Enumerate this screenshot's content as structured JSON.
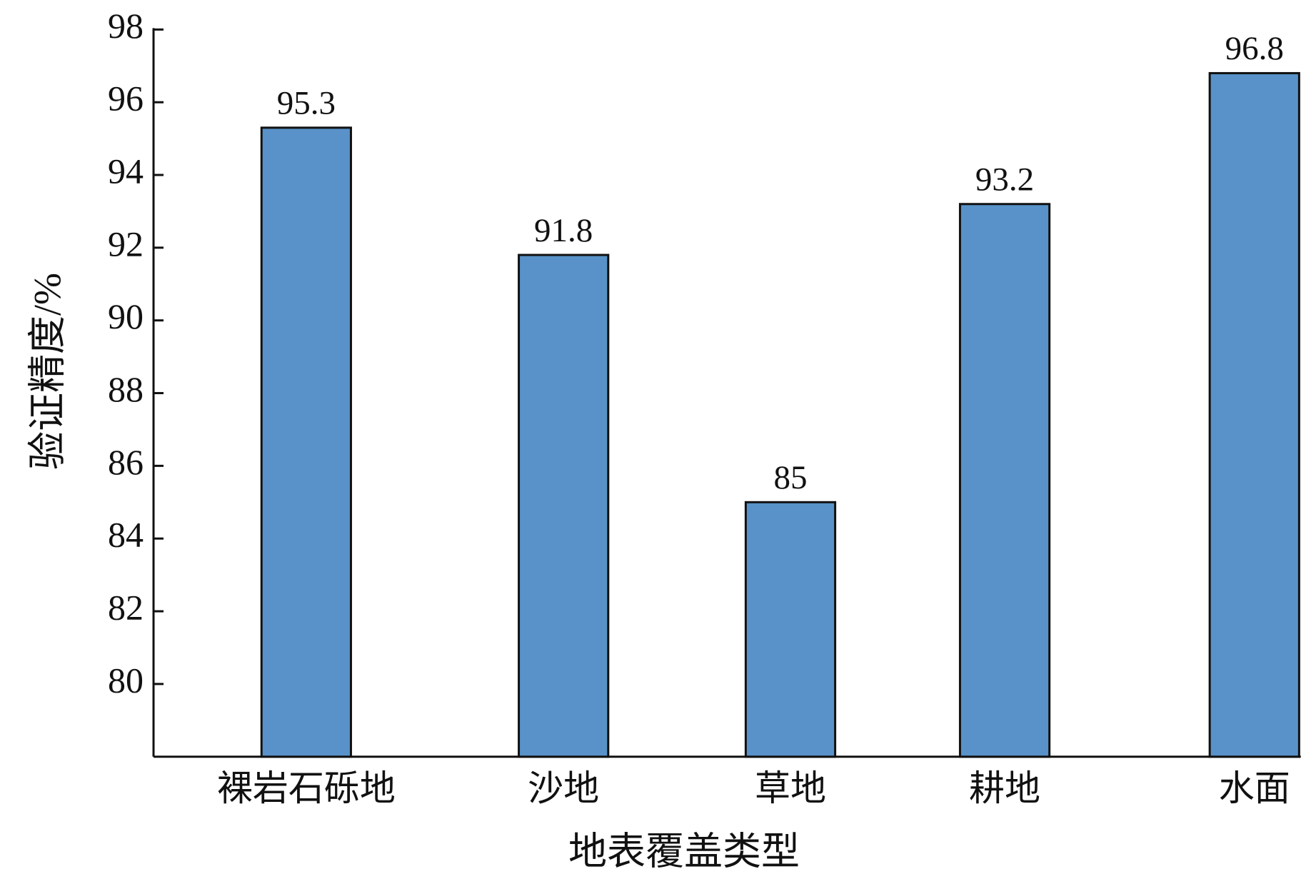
{
  "chart_data": {
    "type": "bar",
    "x_label": "地表覆盖类型",
    "y_label": "验证精度/%",
    "categories": [
      "裸岩石砾地",
      "沙地",
      "草地",
      "耕地",
      "水面"
    ],
    "values": [
      95.3,
      91.8,
      85,
      93.2,
      96.8
    ],
    "color": "#5892c8",
    "ylim": [
      78,
      98
    ],
    "yticks": [
      80,
      82,
      84,
      86,
      88,
      90,
      92,
      94,
      96,
      98
    ],
    "grid": false
  }
}
